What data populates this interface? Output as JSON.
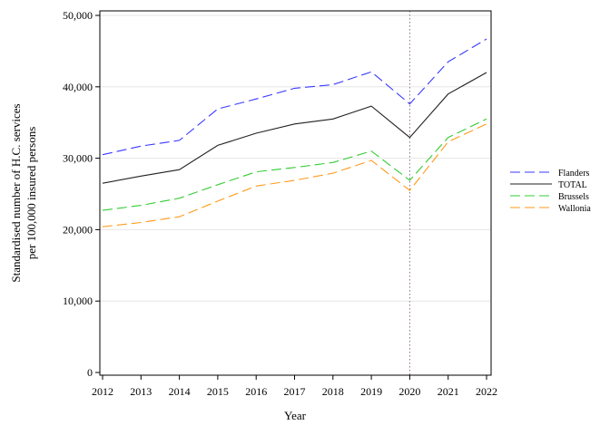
{
  "chart_data": {
    "type": "line",
    "title": "",
    "xlabel": "Year",
    "ylabel_lines": [
      "Standardised number of H.C. services",
      "per 100,000 insured persons"
    ],
    "x": [
      2012,
      2013,
      2014,
      2015,
      2016,
      2017,
      2018,
      2019,
      2020,
      2021,
      2022
    ],
    "x_tick_labels": [
      "2012",
      "2013",
      "2014",
      "2015",
      "2016",
      "2017",
      "2018",
      "2019",
      "2020",
      "2021",
      "2022"
    ],
    "ylim": [
      0,
      50000
    ],
    "y_ticks": [
      0,
      10000,
      20000,
      30000,
      40000,
      50000
    ],
    "y_tick_labels": [
      "0",
      "10,000",
      "20,000",
      "30,000",
      "40,000",
      "50,000"
    ],
    "grid": "horizontal",
    "vertical_reference_line": {
      "x": 2020,
      "style": "dotted",
      "color": "#8a6a8a"
    },
    "legend_position": "right",
    "series": [
      {
        "name": "Flanders",
        "color": "#3a3aff",
        "dash": "dashed",
        "values": [
          30500,
          31700,
          32500,
          36900,
          38300,
          39800,
          40300,
          42100,
          37600,
          43500,
          46700
        ]
      },
      {
        "name": "TOTAL",
        "color": "#222222",
        "dash": "solid",
        "values": [
          26500,
          27500,
          28400,
          31800,
          33500,
          34800,
          35500,
          37300,
          32900,
          39000,
          42000
        ]
      },
      {
        "name": "Brussels",
        "color": "#33cc33",
        "dash": "dashed",
        "values": [
          22700,
          23400,
          24400,
          26300,
          28100,
          28700,
          29400,
          31000,
          26900,
          32900,
          35500
        ]
      },
      {
        "name": "Wallonia",
        "color": "#ff9a1a",
        "dash": "dashed",
        "values": [
          20400,
          21000,
          21800,
          24000,
          26100,
          26900,
          27900,
          29700,
          25500,
          32300,
          34800
        ]
      }
    ]
  }
}
